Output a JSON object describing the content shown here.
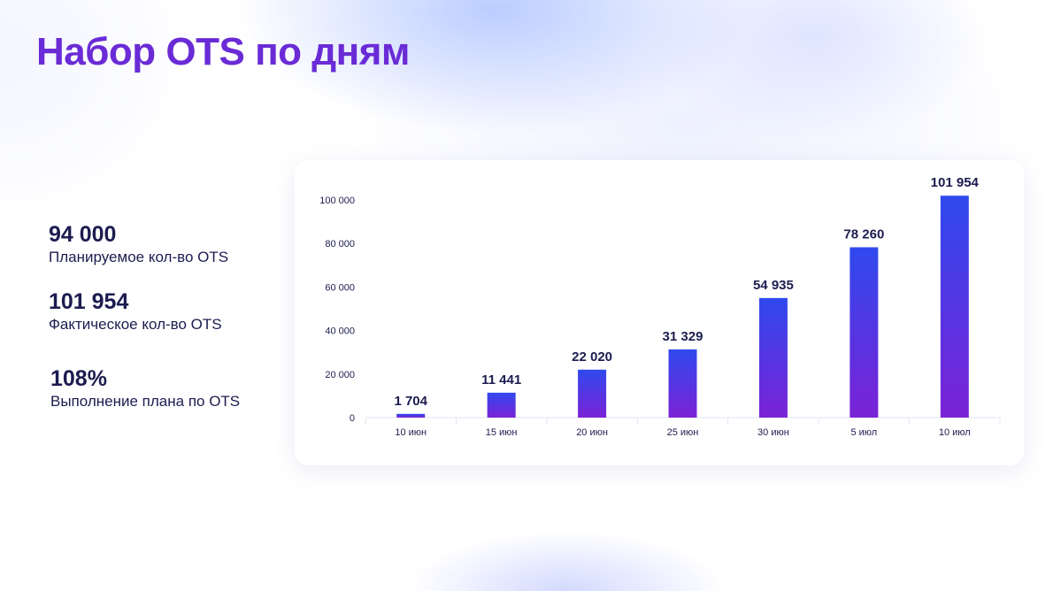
{
  "page": {
    "title": "Набор OTS по дням"
  },
  "stats": [
    {
      "value": "94 000",
      "label": "Планируемое кол-во OTS"
    },
    {
      "value": "101 954",
      "label": "Фактическое кол-во OTS"
    },
    {
      "value": "108%",
      "label": "Выполнение плана по OTS"
    }
  ],
  "colors": {
    "title": "#6a2bd6",
    "text": "#1c1c50",
    "bar_top": "#2f49ee",
    "bar_bottom": "#7b22d6"
  },
  "chart_data": {
    "type": "bar",
    "categories": [
      "10 июн",
      "15 июн",
      "20 июн",
      "25 июн",
      "30 июн",
      "5 июл",
      "10 июл"
    ],
    "values": [
      1704,
      11441,
      22020,
      31329,
      54935,
      78260,
      101954
    ],
    "value_labels": [
      "1 704",
      "11 441",
      "22 020",
      "31 329",
      "54 935",
      "78 260",
      "101 954"
    ],
    "yticks": [
      0,
      20000,
      40000,
      60000,
      80000,
      100000
    ],
    "ytick_labels": [
      "0",
      "20 000",
      "40 000",
      "60 000",
      "80 000",
      "100 000"
    ],
    "ylim": [
      0,
      100000
    ],
    "grid": false,
    "legend": false
  }
}
